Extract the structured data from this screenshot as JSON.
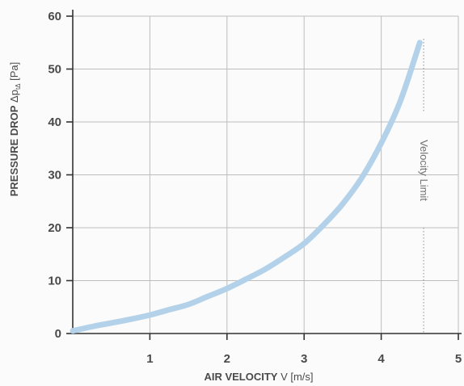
{
  "chart_data": {
    "type": "line",
    "xlabel_bold": "AIR VELOCITY",
    "xlabel_rest": " V [m/s]",
    "ylabel_bold": "PRESSURE DROP",
    "ylabel_rest": " Δp",
    "ylabel_sub": "tΔ",
    "ylabel_unit": " [Pa]",
    "xlim": [
      0,
      5
    ],
    "ylim": [
      0,
      60
    ],
    "x_ticks": [
      1,
      2,
      3,
      4,
      5
    ],
    "y_ticks": [
      0,
      10,
      20,
      30,
      40,
      50,
      60
    ],
    "grid": true,
    "series": [
      {
        "color": "#b3d2ea",
        "x": [
          0,
          0.25,
          0.5,
          0.75,
          1.0,
          1.25,
          1.5,
          1.75,
          2.0,
          2.25,
          2.5,
          2.75,
          3.0,
          3.25,
          3.5,
          3.75,
          4.0,
          4.25,
          4.5
        ],
        "y": [
          0.5,
          1.3,
          2.0,
          2.7,
          3.5,
          4.5,
          5.5,
          7.0,
          8.5,
          10.3,
          12.2,
          14.5,
          17.0,
          20.5,
          24.5,
          29.5,
          36.0,
          44.0,
          55.0
        ]
      }
    ],
    "annotations": [
      {
        "label": "Velocity Limit",
        "x": 4.55,
        "style": "dotted-vertical"
      }
    ]
  }
}
